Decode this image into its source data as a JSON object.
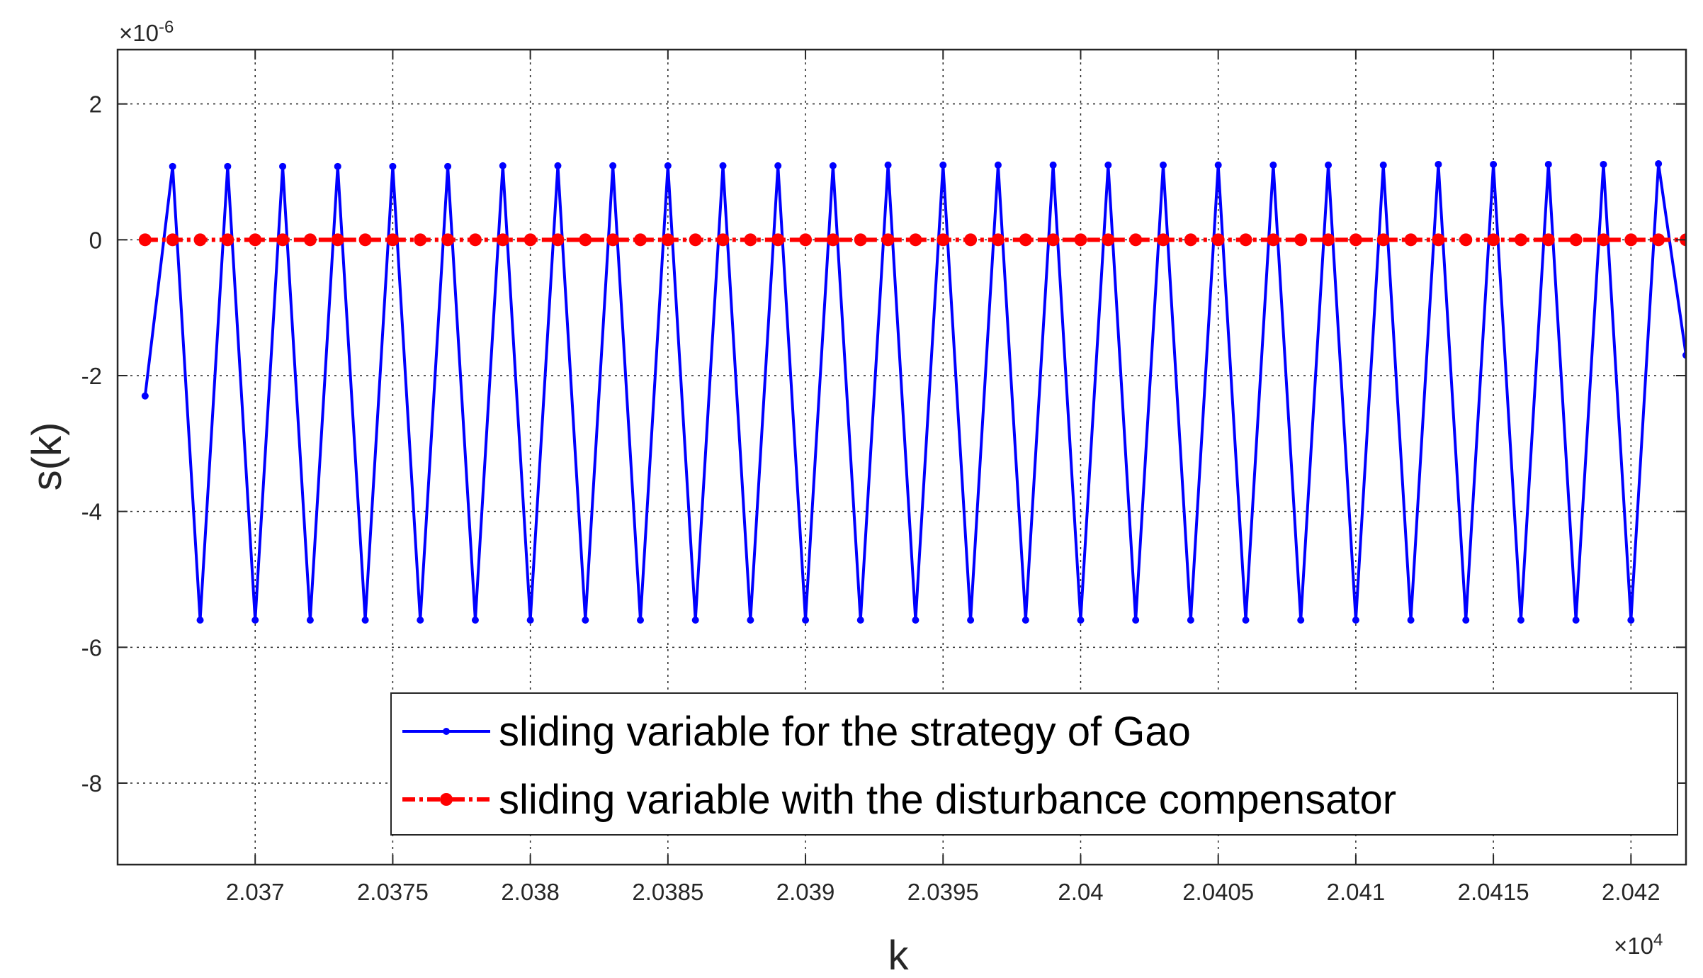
{
  "chart_data": {
    "type": "line",
    "xlabel": "k",
    "ylabel": "s(k)",
    "x_exponent_label": "×10",
    "x_exponent_power": "4",
    "y_exponent_label": "×10",
    "y_exponent_power": "-6",
    "xlim": [
      20365,
      20422
    ],
    "ylim": [
      -9.2e-06,
      2.8e-06
    ],
    "x_scale_factor": 10000,
    "y_scale_factor": 1e-06,
    "x_ticks": [
      20370,
      20375,
      20380,
      20385,
      20390,
      20395,
      20400,
      20405,
      20410,
      20415,
      20420
    ],
    "x_tick_labels": [
      "2.037",
      "2.0375",
      "2.038",
      "2.0385",
      "2.039",
      "2.0395",
      "2.04",
      "2.0405",
      "2.041",
      "2.0415",
      "2.042"
    ],
    "y_ticks": [
      2,
      0,
      -2,
      -4,
      -6,
      -8
    ],
    "y_tick_labels": [
      "2",
      "0",
      "-2",
      "-4",
      "-6",
      "-8"
    ],
    "grid": true,
    "legend_position": "bottom-right",
    "series": [
      {
        "name": "sliding variable for the strategy of Gao",
        "color": "#0000ff",
        "style": "solid",
        "marker": "dot",
        "x_start": 20366,
        "x_step": 1,
        "values": [
          -2.3,
          1.08,
          -5.6,
          1.08,
          -5.6,
          1.08,
          -5.6,
          1.08,
          -5.6,
          1.08,
          -5.6,
          1.08,
          -5.6,
          1.09,
          -5.6,
          1.09,
          -5.6,
          1.09,
          -5.6,
          1.09,
          -5.6,
          1.09,
          -5.6,
          1.09,
          -5.6,
          1.09,
          -5.6,
          1.1,
          -5.6,
          1.1,
          -5.6,
          1.1,
          -5.6,
          1.1,
          -5.6,
          1.1,
          -5.6,
          1.1,
          -5.6,
          1.1,
          -5.6,
          1.1,
          -5.6,
          1.1,
          -5.6,
          1.1,
          -5.6,
          1.11,
          -5.6,
          1.11,
          -5.6,
          1.11,
          -5.6,
          1.11,
          -5.6,
          1.12,
          -1.7
        ]
      },
      {
        "name": "sliding variable with the disturbance compensator",
        "color": "#ff0000",
        "style": "dash-dot",
        "marker": "dot",
        "x_start": 20366,
        "x_step": 1,
        "values": [
          0,
          0,
          0,
          0,
          0,
          0,
          0,
          0,
          0,
          0,
          0,
          0,
          0,
          0,
          0,
          0,
          0,
          0,
          0,
          0,
          0,
          0,
          0,
          0,
          0,
          0,
          0,
          0,
          0,
          0,
          0,
          0,
          0,
          0,
          0,
          0,
          0,
          0,
          0,
          0,
          0,
          0,
          0,
          0,
          0,
          0,
          0,
          0,
          0,
          0,
          0,
          0,
          0,
          0,
          0,
          0,
          0
        ]
      }
    ]
  }
}
